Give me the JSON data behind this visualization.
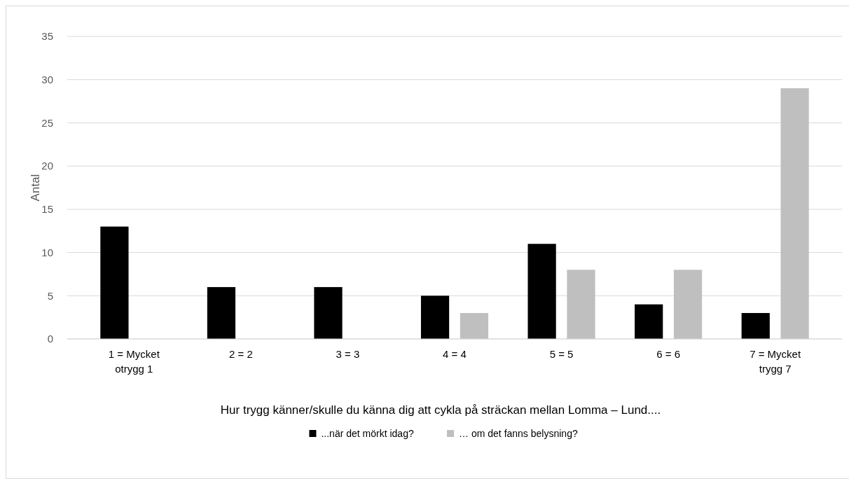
{
  "chart_data": {
    "type": "bar",
    "xlabel": "Hur trygg känner/skulle du känna dig att cykla på sträckan mellan Lomma – Lund....",
    "ylabel": "Antal",
    "categories": [
      "1 = Mycket otrygg 1",
      "2 = 2",
      "3 = 3",
      "4 = 4",
      "5 = 5",
      "6 = 6",
      "7 = Mycket trygg 7"
    ],
    "series": [
      {
        "name": "...när det mörkt idag?",
        "color": "#000000",
        "values": [
          13,
          6,
          6,
          5,
          11,
          4,
          3
        ]
      },
      {
        "name": "… om det fanns belysning?",
        "color": "#bfbfbf",
        "values": [
          null,
          null,
          null,
          3,
          8,
          8,
          29
        ]
      }
    ],
    "ylim": [
      0,
      35
    ],
    "yticks": [
      0,
      5,
      10,
      15,
      20,
      25,
      30,
      35
    ],
    "grid": "y",
    "legend": "bottom"
  }
}
